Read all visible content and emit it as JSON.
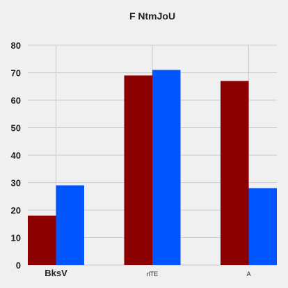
{
  "chart_data": {
    "type": "bar",
    "title": "F NtmJoU",
    "xlabel": "",
    "ylabel": "",
    "categories": [
      "BksV",
      "rlTE",
      "A"
    ],
    "series": [
      {
        "values": [
          18,
          69,
          67
        ],
        "color": "#8b0000"
      },
      {
        "values": [
          29,
          71,
          28
        ],
        "color": "#0055ff"
      }
    ],
    "ylim": [
      0,
      80
    ],
    "yticks": [
      0,
      10,
      20,
      30,
      40,
      50,
      60,
      70,
      80
    ],
    "grid": true,
    "legend": "none",
    "background": "#f0f0f0"
  }
}
